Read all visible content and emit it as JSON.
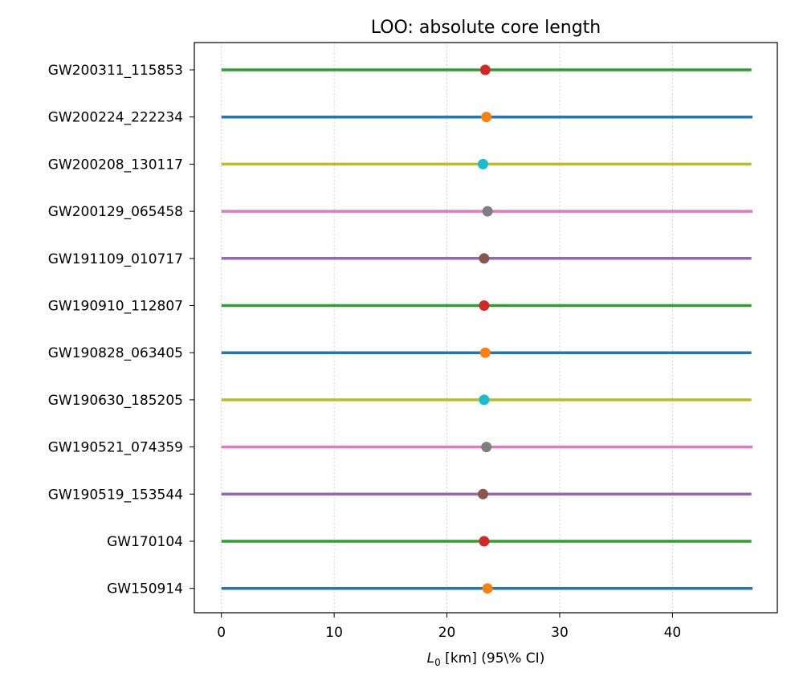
{
  "chart_data": {
    "type": "errorbar",
    "title": "LOO: absolute core length",
    "xlabel": "L_0 [km] (95\\% CI)",
    "xlabel_main": "L",
    "xlabel_sub": "0",
    "xlabel_rest": " [km] (95\\% CI)",
    "xlim": [
      -2.4,
      49.3
    ],
    "xticks": [
      0,
      10,
      20,
      30,
      40
    ],
    "grid": "x-dotted",
    "series": [
      {
        "event": "GW200311_115853",
        "low": 0,
        "high": 47.0,
        "median": 23.4,
        "line_color": "#2ca02c",
        "marker_color": "#d62728"
      },
      {
        "event": "GW200224_222234",
        "low": 0,
        "high": 47.1,
        "median": 23.5,
        "line_color": "#1f77b4",
        "marker_color": "#ff7f0e"
      },
      {
        "event": "GW200208_130117",
        "low": 0,
        "high": 47.0,
        "median": 23.2,
        "line_color": "#bcbd22",
        "marker_color": "#17becf"
      },
      {
        "event": "GW200129_065458",
        "low": 0,
        "high": 47.1,
        "median": 23.6,
        "line_color": "#e377c2",
        "marker_color": "#7f7f7f"
      },
      {
        "event": "GW191109_010717",
        "low": 0,
        "high": 47.0,
        "median": 23.3,
        "line_color": "#9467bd",
        "marker_color": "#8c564b"
      },
      {
        "event": "GW190910_112807",
        "low": 0,
        "high": 47.0,
        "median": 23.3,
        "line_color": "#2ca02c",
        "marker_color": "#d62728"
      },
      {
        "event": "GW190828_063405",
        "low": 0,
        "high": 47.0,
        "median": 23.4,
        "line_color": "#1f77b4",
        "marker_color": "#ff7f0e"
      },
      {
        "event": "GW190630_185205",
        "low": 0,
        "high": 47.0,
        "median": 23.3,
        "line_color": "#bcbd22",
        "marker_color": "#17becf"
      },
      {
        "event": "GW190521_074359",
        "low": 0,
        "high": 47.1,
        "median": 23.5,
        "line_color": "#e377c2",
        "marker_color": "#7f7f7f"
      },
      {
        "event": "GW190519_153544",
        "low": 0,
        "high": 47.0,
        "median": 23.2,
        "line_color": "#9467bd",
        "marker_color": "#8c564b"
      },
      {
        "event": "GW170104",
        "low": 0,
        "high": 47.0,
        "median": 23.3,
        "line_color": "#2ca02c",
        "marker_color": "#d62728"
      },
      {
        "event": "GW150914",
        "low": 0,
        "high": 47.1,
        "median": 23.6,
        "line_color": "#1f77b4",
        "marker_color": "#ff7f0e"
      }
    ]
  }
}
